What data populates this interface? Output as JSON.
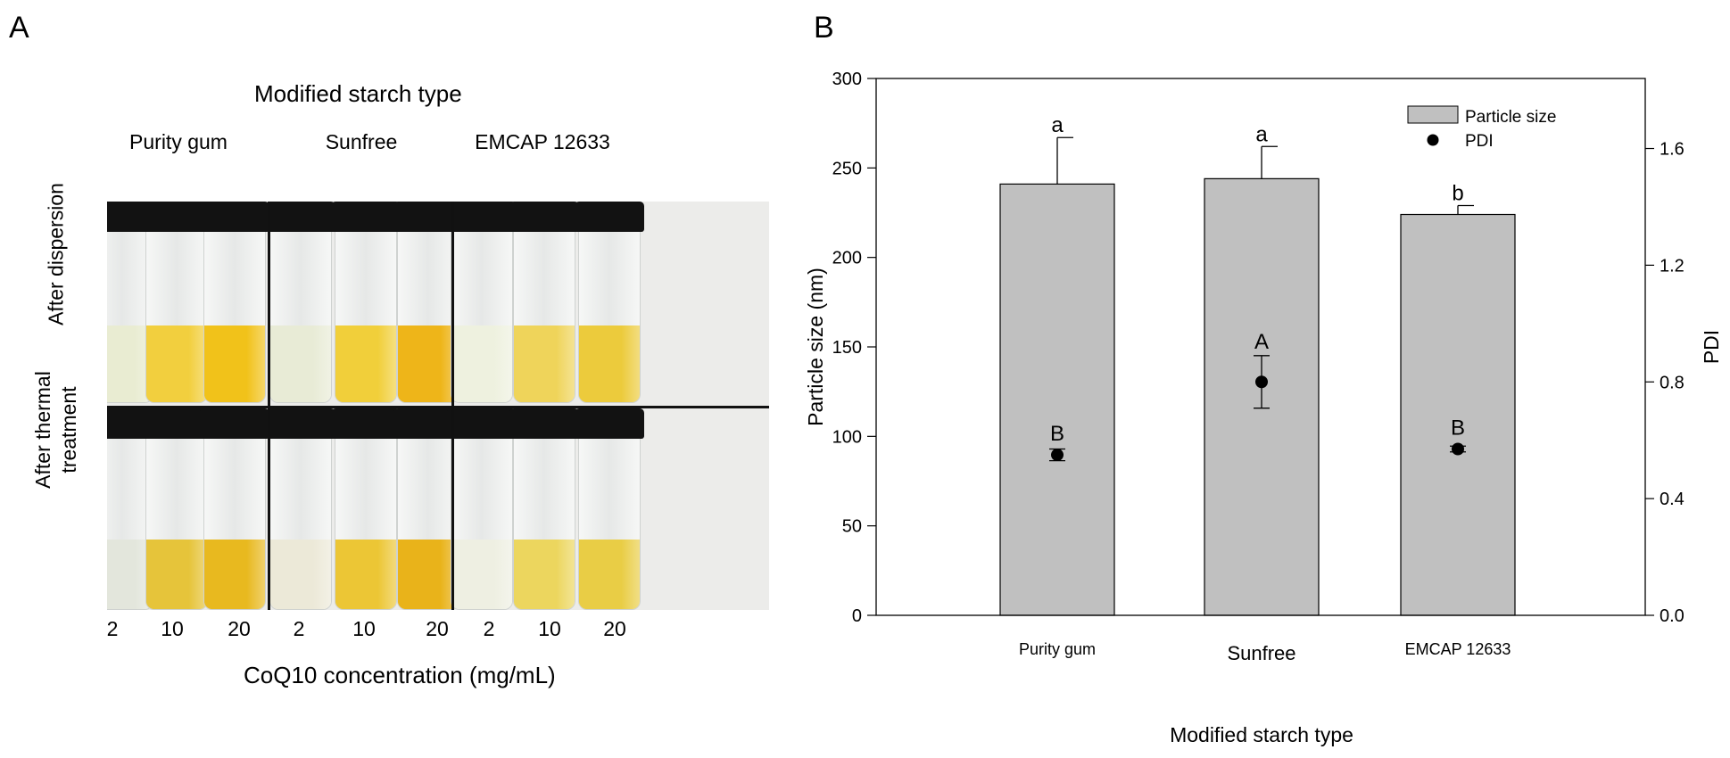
{
  "panel_a": {
    "letter": "A",
    "header": "Modified starch type",
    "groups": [
      "Purity gum",
      "Sunfree",
      "EMCAP 12633"
    ],
    "row_labels": [
      "After dispersion",
      "After thermal\ntreatment"
    ],
    "concentrations": [
      "2",
      "10",
      "20",
      "2",
      "10",
      "20",
      "2",
      "10",
      "20"
    ],
    "xlabel": "CoQ10 concentration (mg/mL)",
    "photo": {
      "dispersion_colors": [
        "#e9ecd2",
        "#f2cf3e",
        "#f1c21a",
        "#e8ebd6",
        "#f1cf3a",
        "#eeb519",
        "#eef1df",
        "#efd45a",
        "#eccb3c"
      ],
      "thermal_colors": [
        "#e3e6dc",
        "#e6c43a",
        "#e8b91f",
        "#ece9d8",
        "#ecc635",
        "#e9b31a",
        "#eeefe2",
        "#ecd65e",
        "#e9cd45"
      ]
    }
  },
  "panel_b": {
    "letter": "B",
    "bar_color": "#c0c0c0",
    "chart_data": {
      "type": "bar",
      "categories": [
        "Purity gum",
        "Sunfree",
        "EMCAP 12633"
      ],
      "series": [
        {
          "name": "Particle size",
          "values": [
            241,
            244,
            224
          ],
          "errors": [
            26,
            18,
            5
          ],
          "letters": [
            "a",
            "a",
            "b"
          ],
          "axis": "left"
        },
        {
          "name": "PDI",
          "values": [
            0.55,
            0.8,
            0.57
          ],
          "errors": [
            0.02,
            0.09,
            0.01
          ],
          "letters": [
            "B",
            "A",
            "B"
          ],
          "axis": "right"
        }
      ],
      "xlabel": "Modified starch type",
      "ylabel": "Particle size (nm)",
      "y2label": "PDI",
      "ylim": [
        0,
        300
      ],
      "y2lim": [
        0,
        1.84
      ],
      "yticks": [
        0,
        50,
        100,
        150,
        200,
        250,
        300
      ],
      "y2ticks": [
        "0.0",
        "0.4",
        "0.8",
        "1.2",
        "1.6"
      ],
      "grid": false,
      "legend": "top-right"
    }
  }
}
